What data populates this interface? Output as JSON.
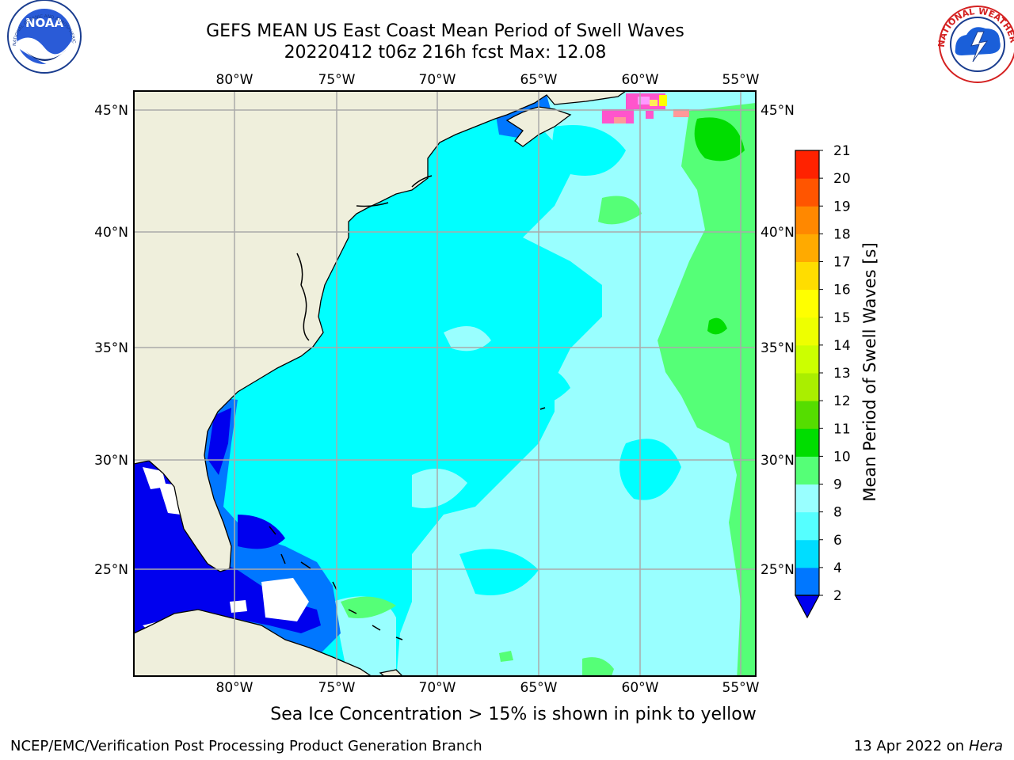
{
  "title": {
    "line1": "GEFS MEAN US East Coast Mean Period of Swell Waves",
    "line2": "20220412 t06z 216h fcst   Max: 12.08"
  },
  "logos": {
    "noaa": {
      "text": "NOAA",
      "ring_text": "NATIONAL OCEANIC AND ATMOSPHERIC ADMINISTRATION · U.S. DEPARTMENT OF COMMERCE"
    },
    "nws": {
      "ring_text": "NATIONAL WEATHER SERVICE"
    }
  },
  "map": {
    "lon_labels": [
      "80°W",
      "75°W",
      "70°W",
      "65°W",
      "60°W",
      "55°W"
    ],
    "lat_labels": [
      "45°N",
      "40°N",
      "35°N",
      "30°N",
      "25°N"
    ],
    "colors": {
      "land": "#efefdc",
      "ocean_base": "#00ffff",
      "swell_2_4": "#0077ff",
      "swell_under_2": "#0000ee",
      "swell_8_9": "#99ffff",
      "swell_9_10": "#55ff77",
      "swell_10_11": "#00dd00",
      "grid": "#aaaaaa",
      "sea_ice": "#ff55cc"
    }
  },
  "colorbar": {
    "label": "Mean Period of Swell Waves [s]",
    "ticks": [
      "2",
      "4",
      "6",
      "8",
      "9",
      "10",
      "11",
      "12",
      "13",
      "14",
      "15",
      "16",
      "17",
      "18",
      "19",
      "20",
      "21"
    ],
    "colors": [
      "#0077ff",
      "#00ddff",
      "#55ffff",
      "#99ffff",
      "#55ff77",
      "#00dd00",
      "#55dd00",
      "#aaee00",
      "#ccff00",
      "#eeff00",
      "#ffff00",
      "#ffdd00",
      "#ffaa00",
      "#ff8800",
      "#ff5500",
      "#ff2200"
    ],
    "extend_color": "#0000ee"
  },
  "note": "Sea Ice Concentration > 15% is shown in pink to yellow",
  "footer": {
    "left": "NCEP/EMC/Verification Post Processing Product Generation Branch",
    "right_prefix": "13 Apr 2022 on ",
    "right_host": "Hera"
  }
}
